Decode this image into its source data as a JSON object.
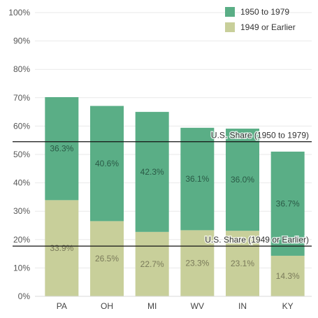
{
  "chart_data": {
    "type": "bar",
    "stacked": true,
    "categories": [
      "PA",
      "OH",
      "MI",
      "WV",
      "IN",
      "KY"
    ],
    "series": [
      {
        "name": "1949 or Earlier",
        "color": "#c8cf9a",
        "label_color": "#7a7a5a",
        "values": [
          33.9,
          26.5,
          22.7,
          23.3,
          23.1,
          14.3
        ]
      },
      {
        "name": "1950 to 1979",
        "color": "#5aae86",
        "label_color": "#2a5a46",
        "values": [
          36.3,
          40.6,
          42.3,
          36.1,
          36.0,
          36.7
        ]
      }
    ],
    "ylim": [
      0,
      100
    ],
    "yticks": [
      0,
      10,
      20,
      30,
      40,
      50,
      60,
      70,
      80,
      90,
      100
    ],
    "ytick_labels": [
      "0%",
      "10%",
      "20%",
      "30%",
      "40%",
      "50%",
      "60%",
      "70%",
      "80%",
      "90%",
      "100%"
    ],
    "data_labels": [
      [
        "33.9%",
        "26.5%",
        "22.7%",
        "23.3%",
        "23.1%",
        "14.3%"
      ],
      [
        "36.3%",
        "40.6%",
        "42.3%",
        "36.1%",
        "36.0%",
        "36.7%"
      ]
    ],
    "reference_lines": [
      {
        "label": "U.S. Share (1950 to 1979)",
        "value": 54.5
      },
      {
        "label": "U.S. Share (1949 or Earlier)",
        "value": 17.7
      }
    ],
    "legend": {
      "placement": "top-right",
      "entries": [
        {
          "label": "1950 to 1979",
          "color": "#5aae86"
        },
        {
          "label": "1949 or Earlier",
          "color": "#c8cf9a"
        }
      ]
    },
    "grid": true
  }
}
